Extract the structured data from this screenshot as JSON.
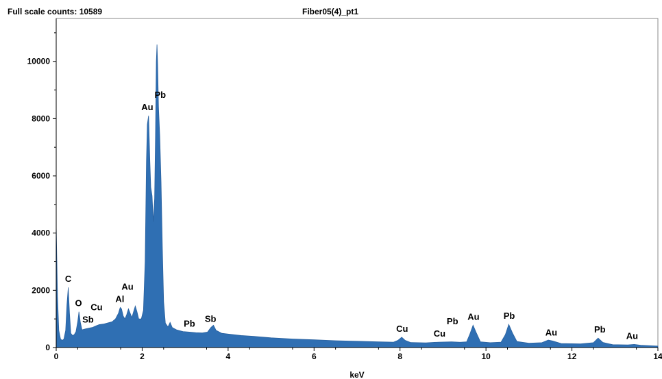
{
  "header": {
    "full_scale": "Full scale counts: 10589",
    "sample": "Fiber05(4)_pt1"
  },
  "chart_data": {
    "type": "area",
    "title": "Fiber05(4)_pt1",
    "xlabel": "keV",
    "ylabel": "",
    "xlim": [
      0,
      14
    ],
    "ylim": [
      0,
      11500
    ],
    "xticks": [
      0,
      2,
      4,
      6,
      8,
      10,
      12,
      14
    ],
    "yticks": [
      0,
      2000,
      4000,
      6000,
      8000,
      10000
    ],
    "grid": false,
    "fill_color": "#2f6fb3",
    "full_scale_counts": 10589,
    "spectrum": [
      [
        0.0,
        4300
      ],
      [
        0.03,
        1800
      ],
      [
        0.06,
        600
      ],
      [
        0.1,
        300
      ],
      [
        0.14,
        250
      ],
      [
        0.18,
        300
      ],
      [
        0.22,
        600
      ],
      [
        0.25,
        1500
      ],
      [
        0.28,
        2100
      ],
      [
        0.31,
        1200
      ],
      [
        0.34,
        500
      ],
      [
        0.38,
        420
      ],
      [
        0.42,
        450
      ],
      [
        0.46,
        550
      ],
      [
        0.5,
        900
      ],
      [
        0.53,
        1250
      ],
      [
        0.56,
        900
      ],
      [
        0.6,
        620
      ],
      [
        0.68,
        650
      ],
      [
        0.76,
        680
      ],
      [
        0.84,
        700
      ],
      [
        0.93,
        760
      ],
      [
        1.0,
        800
      ],
      [
        1.1,
        820
      ],
      [
        1.2,
        860
      ],
      [
        1.3,
        900
      ],
      [
        1.38,
        1000
      ],
      [
        1.45,
        1200
      ],
      [
        1.49,
        1400
      ],
      [
        1.52,
        1350
      ],
      [
        1.56,
        1100
      ],
      [
        1.6,
        1000
      ],
      [
        1.64,
        1150
      ],
      [
        1.68,
        1350
      ],
      [
        1.72,
        1200
      ],
      [
        1.76,
        1050
      ],
      [
        1.8,
        1250
      ],
      [
        1.84,
        1450
      ],
      [
        1.88,
        1250
      ],
      [
        1.92,
        1000
      ],
      [
        1.98,
        1000
      ],
      [
        2.03,
        1300
      ],
      [
        2.07,
        3000
      ],
      [
        2.1,
        6500
      ],
      [
        2.12,
        7800
      ],
      [
        2.15,
        8100
      ],
      [
        2.18,
        6500
      ],
      [
        2.2,
        5600
      ],
      [
        2.23,
        5300
      ],
      [
        2.26,
        4400
      ],
      [
        2.29,
        5200
      ],
      [
        2.31,
        7400
      ],
      [
        2.33,
        10000
      ],
      [
        2.345,
        10589
      ],
      [
        2.36,
        9900
      ],
      [
        2.38,
        8400
      ],
      [
        2.41,
        7400
      ],
      [
        2.44,
        5800
      ],
      [
        2.47,
        3500
      ],
      [
        2.5,
        1600
      ],
      [
        2.54,
        850
      ],
      [
        2.6,
        720
      ],
      [
        2.65,
        880
      ],
      [
        2.7,
        700
      ],
      [
        2.8,
        620
      ],
      [
        2.95,
        560
      ],
      [
        3.1,
        540
      ],
      [
        3.25,
        520
      ],
      [
        3.4,
        510
      ],
      [
        3.52,
        540
      ],
      [
        3.6,
        700
      ],
      [
        3.66,
        780
      ],
      [
        3.72,
        600
      ],
      [
        3.85,
        500
      ],
      [
        4.0,
        470
      ],
      [
        4.3,
        420
      ],
      [
        4.6,
        390
      ],
      [
        5.0,
        340
      ],
      [
        5.5,
        300
      ],
      [
        6.0,
        270
      ],
      [
        6.5,
        240
      ],
      [
        7.0,
        220
      ],
      [
        7.5,
        200
      ],
      [
        7.85,
        190
      ],
      [
        7.95,
        250
      ],
      [
        8.04,
        360
      ],
      [
        8.12,
        250
      ],
      [
        8.25,
        175
      ],
      [
        8.6,
        165
      ],
      [
        8.9,
        190
      ],
      [
        9.2,
        200
      ],
      [
        9.4,
        185
      ],
      [
        9.55,
        200
      ],
      [
        9.62,
        450
      ],
      [
        9.7,
        780
      ],
      [
        9.78,
        500
      ],
      [
        9.87,
        200
      ],
      [
        10.1,
        170
      ],
      [
        10.35,
        190
      ],
      [
        10.45,
        450
      ],
      [
        10.53,
        810
      ],
      [
        10.62,
        500
      ],
      [
        10.72,
        210
      ],
      [
        11.0,
        150
      ],
      [
        11.3,
        170
      ],
      [
        11.45,
        260
      ],
      [
        11.55,
        230
      ],
      [
        11.75,
        140
      ],
      [
        12.2,
        130
      ],
      [
        12.5,
        170
      ],
      [
        12.61,
        330
      ],
      [
        12.72,
        180
      ],
      [
        12.95,
        100
      ],
      [
        13.3,
        90
      ],
      [
        13.45,
        110
      ],
      [
        13.6,
        80
      ],
      [
        14.0,
        50
      ]
    ],
    "annotations": [
      {
        "text": "C",
        "x": 0.28
      },
      {
        "text": "O",
        "x": 0.52
      },
      {
        "text": "Sb",
        "x": 0.74
      },
      {
        "text": "Cu",
        "x": 0.94
      },
      {
        "text": "Al",
        "x": 1.48
      },
      {
        "text": "Au",
        "x": 1.66
      },
      {
        "text": "Au",
        "x": 2.12
      },
      {
        "text": "Pb",
        "x": 2.42
      },
      {
        "text": "Pb",
        "x": 3.1
      },
      {
        "text": "Sb",
        "x": 3.59
      },
      {
        "text": "Cu",
        "x": 8.05
      },
      {
        "text": "Cu",
        "x": 8.92
      },
      {
        "text": "Pb",
        "x": 9.22
      },
      {
        "text": "Au",
        "x": 9.71
      },
      {
        "text": "Pb",
        "x": 10.54
      },
      {
        "text": "Au",
        "x": 11.52
      },
      {
        "text": "Pb",
        "x": 12.65
      },
      {
        "text": "Au",
        "x": 13.4
      }
    ]
  }
}
